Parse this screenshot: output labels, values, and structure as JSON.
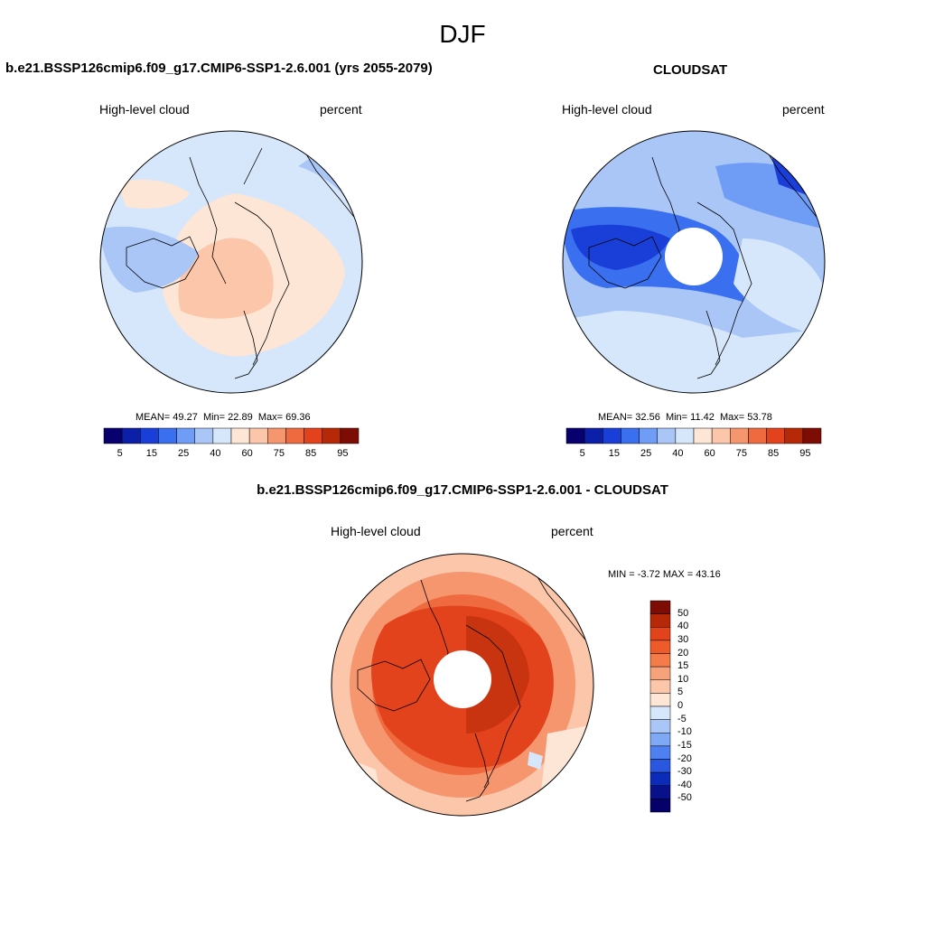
{
  "figure": {
    "season": "DJF"
  },
  "panels": [
    {
      "title": "b.e21.BSSP126cmip6.f09_g17.CMIP6-SSP1-2.6.001 (yrs 2055-2079)",
      "variable": "High-level cloud",
      "units": "percent",
      "stats": {
        "mean_label": "MEAN=",
        "mean": "49.27",
        "min_label": "Min=",
        "min": "22.89",
        "max_label": "Max=",
        "max": "69.36"
      },
      "has_pole_hole": false
    },
    {
      "title": "CLOUDSAT",
      "variable": "High-level cloud",
      "units": "percent",
      "stats": {
        "mean_label": "MEAN=",
        "mean": "32.56",
        "min_label": "Min=",
        "min": "11.42",
        "max_label": "Max=",
        "max": "53.78"
      },
      "has_pole_hole": true
    },
    {
      "title": "b.e21.BSSP126cmip6.f09_g17.CMIP6-SSP1-2.6.001 - CLOUDSAT",
      "variable": "High-level cloud",
      "units": "percent",
      "stats": {
        "text": "MIN =  -3.72 MAX =  43.16"
      },
      "has_pole_hole": true
    }
  ],
  "colorbar_abs": {
    "colors": [
      "#08006e",
      "#0c1fa8",
      "#1a3fd8",
      "#3a6ff0",
      "#6f9cf5",
      "#a9c6f7",
      "#d6e6fb",
      "#fde6d6",
      "#fbc6a9",
      "#f6966f",
      "#ef6a3f",
      "#e2431c",
      "#b52808",
      "#7d0c05"
    ],
    "tick_labels": [
      "5",
      "15",
      "25",
      "40",
      "60",
      "75",
      "85",
      "95"
    ]
  },
  "colorbar_diff": {
    "colors": [
      "#7d0c05",
      "#b52808",
      "#e2431c",
      "#ef5a2a",
      "#f47c4a",
      "#f6a27a",
      "#fbc6a9",
      "#fde6d6",
      "#d6e6fb",
      "#a9c6f7",
      "#7fa8f5",
      "#4f80f0",
      "#2a57e0",
      "#0c2bb8",
      "#08108a",
      "#05006a"
    ],
    "tick_labels": [
      "50",
      "40",
      "30",
      "20",
      "15",
      "10",
      "5",
      "0",
      "-5",
      "-10",
      "-15",
      "-20",
      "-30",
      "-40",
      "-50"
    ]
  }
}
